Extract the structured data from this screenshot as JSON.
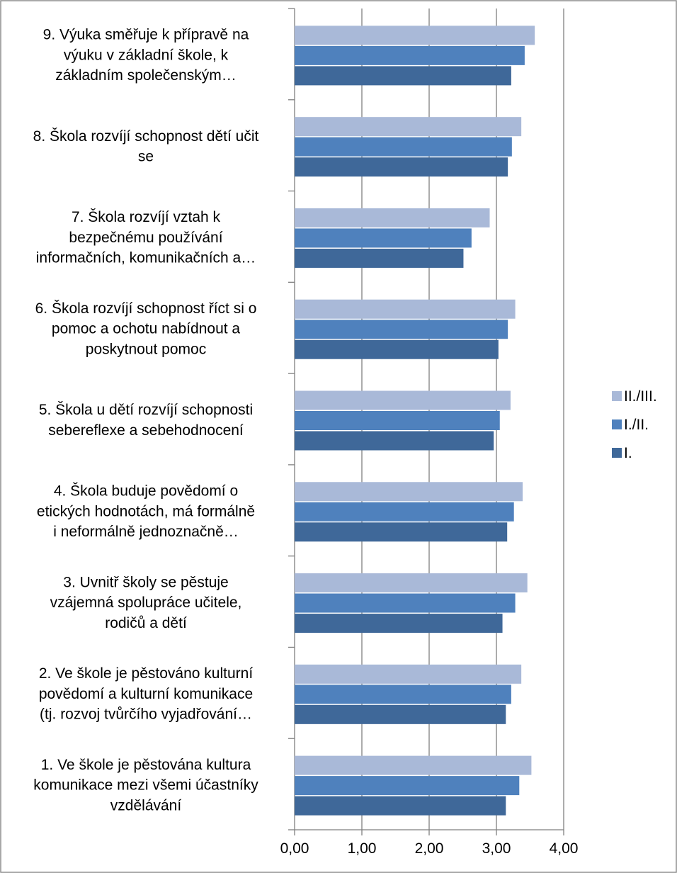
{
  "chart_data": {
    "type": "bar",
    "orientation": "horizontal",
    "categories": [
      [
        "1. Ve škole je pěstována kultura",
        "komunikace mezi všemi účastníky",
        "vzdělávání"
      ],
      [
        "2. Ve škole je pěstováno kulturní",
        "povědomí a kulturní komunikace",
        "(tj. rozvoj tvůrčího vyjadřování…"
      ],
      [
        "3. Uvnitř školy se pěstuje",
        "vzájemná spolupráce učitele,",
        "rodičů a dětí"
      ],
      [
        "4. Škola buduje povědomí o",
        "etických hodnotách, má formálně",
        "i neformálně jednoznačně…"
      ],
      [
        "5. Škola u dětí rozvíjí schopnosti",
        "sebereflexe a sebehodnocení"
      ],
      [
        "6. Škola rozvíjí schopnost říct si o",
        "pomoc a ochotu nabídnout a",
        "poskytnout pomoc"
      ],
      [
        "7. Škola rozvíjí vztah k",
        "bezpečnému používání",
        "informačních, komunikačních a…"
      ],
      [
        "8. Škola rozvíjí schopnost dětí učit",
        "se"
      ],
      [
        "9. Výuka směřuje k přípravě na",
        "výuku v základní škole, k",
        "základním společenským…"
      ]
    ],
    "series": [
      {
        "name": "I.",
        "color": "#3F6899",
        "values": [
          3.14,
          3.14,
          3.09,
          3.16,
          2.96,
          3.03,
          2.51,
          3.17,
          3.22
        ]
      },
      {
        "name": "I./II.",
        "color": "#4F81BD",
        "values": [
          3.34,
          3.22,
          3.28,
          3.26,
          3.05,
          3.17,
          2.63,
          3.23,
          3.42
        ]
      },
      {
        "name": "II./III.",
        "color": "#A9B9D8",
        "values": [
          3.52,
          3.37,
          3.46,
          3.39,
          3.21,
          3.28,
          2.9,
          3.37,
          3.57
        ]
      }
    ],
    "xlim": [
      0,
      4
    ],
    "xticks": [
      "0,00",
      "1,00",
      "2,00",
      "3,00",
      "4,00"
    ],
    "grid": "vertical",
    "legend_position": "right",
    "legend_order": [
      "II./III.",
      "I./II.",
      "I."
    ]
  }
}
